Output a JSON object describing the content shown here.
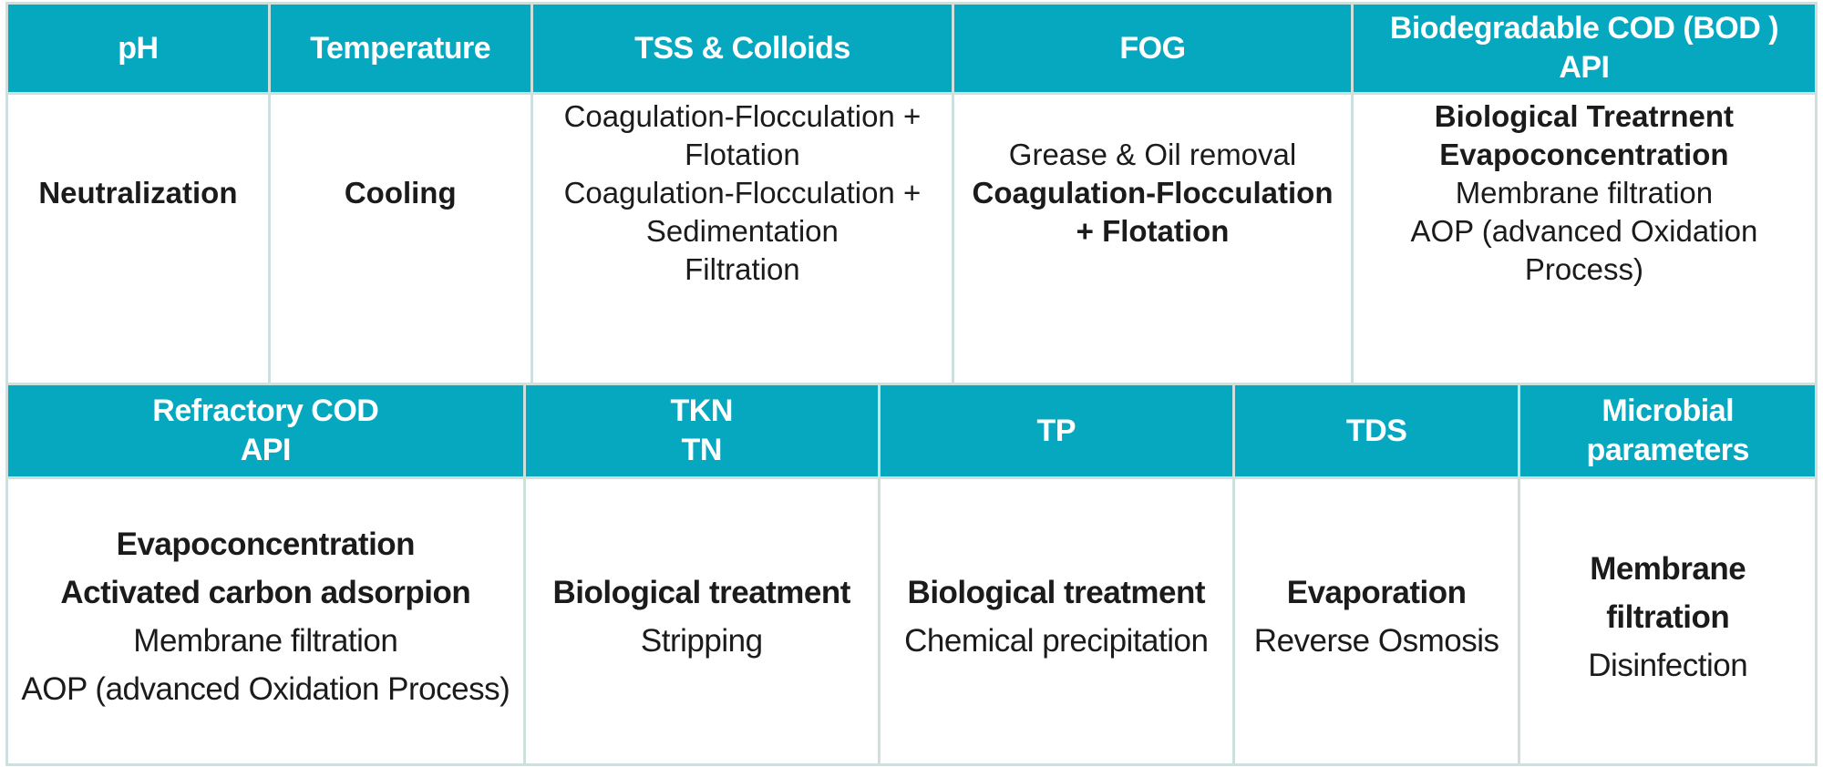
{
  "colors": {
    "header_bg": "#06a8c0",
    "header_text": "#ffffff",
    "body_text": "#1b1b1b",
    "border": "#cde0de",
    "page_bg": "#ffffff"
  },
  "table": {
    "sections": [
      {
        "headers": [
          {
            "id": "ph",
            "lines": [
              "pH"
            ]
          },
          {
            "id": "temperature",
            "lines": [
              "Temperature"
            ]
          },
          {
            "id": "tss-colloids",
            "lines": [
              "TSS & Colloids"
            ]
          },
          {
            "id": "fog",
            "lines": [
              "FOG"
            ]
          },
          {
            "id": "biodegradable-cod",
            "lines": [
              "Biodegradable COD (BOD )",
              "API"
            ]
          }
        ],
        "cells": [
          {
            "lines": [
              {
                "text": "Neutralization",
                "bold": true
              }
            ]
          },
          {
            "lines": [
              {
                "text": "Cooling",
                "bold": true
              }
            ]
          },
          {
            "lines": [
              {
                "text": "Coagulation-Flocculation + Flotation",
                "bold": false
              },
              {
                "text": "Coagulation-Flocculation + Sedimentation",
                "bold": false
              },
              {
                "text": "Filtration",
                "bold": false
              }
            ]
          },
          {
            "lines": [
              {
                "text": "Grease & Oil removal",
                "bold": false
              },
              {
                "text": "Coagulation-Flocculation + Flotation",
                "bold": true
              }
            ]
          },
          {
            "lines": [
              {
                "text": "Biological Treatrnent",
                "bold": true
              },
              {
                "text": "Evapoconcentration",
                "bold": true
              },
              {
                "text": "Membrane filtration",
                "bold": false
              },
              {
                "text": "AOP (advanced Oxidation Process)",
                "bold": false
              }
            ]
          }
        ]
      },
      {
        "headers": [
          {
            "id": "refractory-cod",
            "lines": [
              "Refractory COD",
              "API"
            ]
          },
          {
            "id": "tkn-tn",
            "lines": [
              "TKN",
              "TN"
            ]
          },
          {
            "id": "tp",
            "lines": [
              "TP"
            ]
          },
          {
            "id": "tds",
            "lines": [
              "TDS"
            ]
          },
          {
            "id": "microbial-parameters",
            "lines": [
              "Microbial parameters"
            ]
          }
        ],
        "cells": [
          {
            "lines": [
              {
                "text": "Evapoconcentration",
                "bold": true
              },
              {
                "text": "Activated carbon adsorpion",
                "bold": true
              },
              {
                "text": "Membrane filtration",
                "bold": false
              },
              {
                "text": "AOP (advanced Oxidation Process)",
                "bold": false
              }
            ]
          },
          {
            "lines": [
              {
                "text": "Biological treatment",
                "bold": true
              },
              {
                "text": "Stripping",
                "bold": false
              }
            ]
          },
          {
            "lines": [
              {
                "text": "Biological treatment",
                "bold": true
              },
              {
                "text": "Chemical precipitation",
                "bold": false
              }
            ]
          },
          {
            "lines": [
              {
                "text": "Evaporation",
                "bold": true
              },
              {
                "text": "Reverse Osmosis",
                "bold": false
              }
            ]
          },
          {
            "lines": [
              {
                "text": "Membrane filtration",
                "bold": true
              },
              {
                "text": "Disinfection",
                "bold": false
              }
            ]
          }
        ]
      }
    ]
  }
}
